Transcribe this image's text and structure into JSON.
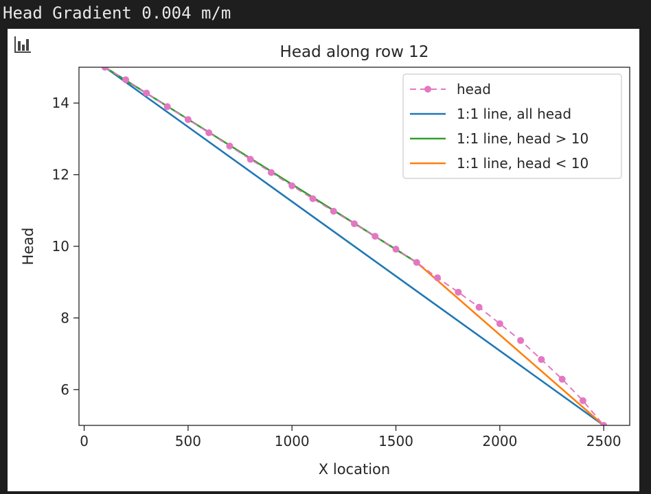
{
  "output": {
    "text": "Head Gradient 0.004 m/m"
  },
  "chart_toolbar": {
    "icon": "bar-chart-icon"
  },
  "chart_data": {
    "type": "line",
    "title": "Head along row 12",
    "xlabel": "X location",
    "ylabel": "Head",
    "xlim": [
      -25,
      2625
    ],
    "ylim": [
      5,
      15
    ],
    "xticks": [
      0,
      500,
      1000,
      1500,
      2000,
      2500
    ],
    "yticks": [
      6,
      8,
      10,
      12,
      14
    ],
    "grid": false,
    "legend_position": "top-right",
    "series": [
      {
        "name": "head",
        "style": "dashed-markers",
        "color": "#e377c2",
        "x": [
          100,
          200,
          300,
          400,
          500,
          600,
          700,
          800,
          900,
          1000,
          1100,
          1200,
          1300,
          1400,
          1500,
          1600,
          1700,
          1800,
          1900,
          2000,
          2100,
          2200,
          2300,
          2400,
          2500
        ],
        "y": [
          15.0,
          14.65,
          14.28,
          13.9,
          13.54,
          13.17,
          12.8,
          12.43,
          12.06,
          11.69,
          11.33,
          10.98,
          10.63,
          10.28,
          9.92,
          9.55,
          9.12,
          8.72,
          8.3,
          7.84,
          7.37,
          6.84,
          6.29,
          5.69,
          5.0
        ]
      },
      {
        "name": "1:1 line, all head",
        "style": "solid",
        "color": "#1f77b4",
        "x": [
          100,
          2500
        ],
        "y": [
          15.0,
          5.0
        ]
      },
      {
        "name": "1:1 line, head > 10",
        "style": "solid",
        "color": "#2ca02c",
        "x": [
          100,
          1600
        ],
        "y": [
          15.0,
          9.55
        ]
      },
      {
        "name": "1:1 line, head < 10",
        "style": "solid",
        "color": "#ff7f0e",
        "x": [
          1600,
          2500
        ],
        "y": [
          9.55,
          5.0
        ]
      }
    ]
  }
}
